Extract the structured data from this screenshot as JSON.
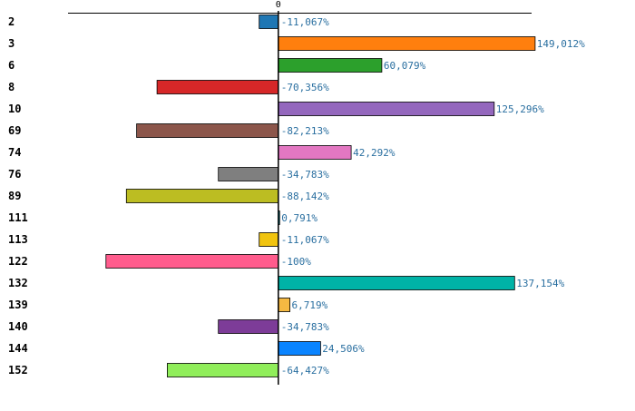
{
  "chart_data": {
    "type": "bar",
    "orientation": "horizontal",
    "categories": [
      "2",
      "3",
      "6",
      "8",
      "10",
      "69",
      "74",
      "76",
      "89",
      "111",
      "113",
      "122",
      "132",
      "139",
      "140",
      "144",
      "152"
    ],
    "values": [
      -11.067,
      149.012,
      60.079,
      -70.356,
      125.296,
      -82.213,
      42.292,
      -34.783,
      -88.142,
      0.791,
      -11.067,
      -100,
      137.154,
      6.719,
      -34.783,
      24.506,
      -64.427
    ],
    "value_labels": [
      "-11,067%",
      "149,012%",
      "60,079%",
      "-70,356%",
      "125,296%",
      "-82,213%",
      "42,292%",
      "-34,783%",
      "-88,142%",
      "0,791%",
      "-11,067%",
      "-100%",
      "137,154%",
      "6,719%",
      "-34,783%",
      "24,506%",
      "-64,427%"
    ],
    "colors": [
      "#1f77b4",
      "#ff7f0e",
      "#2ca02c",
      "#d62728",
      "#9467bd",
      "#8c564b",
      "#e377c2",
      "#7f7f7f",
      "#bcbd22",
      "#17becf",
      "#f1c40f",
      "#ff5c8d",
      "#00b3a7",
      "#f5b942",
      "#7d3c98",
      "#0a84ff",
      "#90ee5a"
    ],
    "ticks": [
      {
        "value": 0,
        "label": "0"
      }
    ],
    "xlim": [
      -122,
      147
    ],
    "title": "",
    "xlabel": "",
    "ylabel": "",
    "grid": false,
    "legend": "none"
  }
}
